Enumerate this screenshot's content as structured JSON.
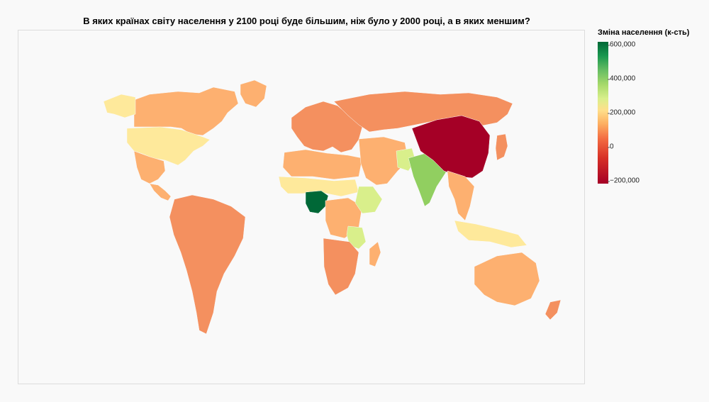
{
  "title": "В яких країнах світу населення у 2100 році буде більшим, ніж було у 2000 році, а в яких меншим?",
  "legend": {
    "title": "Зміна населення (к-сть)",
    "ticks": [
      "600,000",
      "400,000",
      "200,000",
      "0",
      "−200,000"
    ]
  },
  "colors": {
    "strong_growth": "#006837",
    "growth": "#91cf60",
    "slight_growth": "#d9ef8b",
    "small_growth": "#fee99b",
    "near_zero": "#fdb070",
    "decline": "#f4905f",
    "strong_decline": "#a50026"
  },
  "regions": [
    {
      "name": "Canada",
      "color_key": "near_zero"
    },
    {
      "name": "Alaska",
      "color_key": "small_growth"
    },
    {
      "name": "United States",
      "color_key": "small_growth"
    },
    {
      "name": "Mexico",
      "color_key": "near_zero"
    },
    {
      "name": "Central America",
      "color_key": "near_zero"
    },
    {
      "name": "Greenland",
      "color_key": "near_zero"
    },
    {
      "name": "South America",
      "color_key": "decline"
    },
    {
      "name": "Europe",
      "color_key": "decline"
    },
    {
      "name": "Russia",
      "color_key": "decline"
    },
    {
      "name": "North Africa",
      "color_key": "near_zero"
    },
    {
      "name": "Sahel",
      "color_key": "small_growth"
    },
    {
      "name": "Nigeria",
      "color_key": "strong_growth"
    },
    {
      "name": "Central Africa",
      "color_key": "near_zero"
    },
    {
      "name": "Ethiopia",
      "color_key": "slight_growth"
    },
    {
      "name": "Tanzania",
      "color_key": "slight_growth"
    },
    {
      "name": "Southern Africa",
      "color_key": "decline"
    },
    {
      "name": "Madagascar",
      "color_key": "near_zero"
    },
    {
      "name": "Middle East",
      "color_key": "near_zero"
    },
    {
      "name": "Pakistan",
      "color_key": "slight_growth"
    },
    {
      "name": "India",
      "color_key": "growth"
    },
    {
      "name": "China",
      "color_key": "strong_decline"
    },
    {
      "name": "Southeast Asia",
      "color_key": "near_zero"
    },
    {
      "name": "Indonesia",
      "color_key": "small_growth"
    },
    {
      "name": "Japan",
      "color_key": "decline"
    },
    {
      "name": "Australia",
      "color_key": "near_zero"
    },
    {
      "name": "New Zealand",
      "color_key": "decline"
    }
  ]
}
